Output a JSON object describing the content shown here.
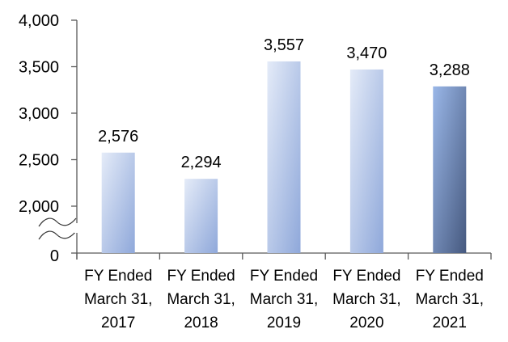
{
  "chart_data": {
    "type": "bar",
    "categories": [
      [
        "FY Ended",
        "March 31,",
        "2017"
      ],
      [
        "FY Ended",
        "March 31,",
        "2018"
      ],
      [
        "FY Ended",
        "March 31,",
        "2019"
      ],
      [
        "FY Ended",
        "March 31,",
        "2020"
      ],
      [
        "FY Ended",
        "March 31,",
        "2021"
      ]
    ],
    "values": [
      2576,
      2294,
      3557,
      3470,
      3288
    ],
    "value_labels": [
      "2,576",
      "2,294",
      "3,557",
      "3,470",
      "3,288"
    ],
    "y_ticks": [
      {
        "value": 4000,
        "label": "4,000"
      },
      {
        "value": 3500,
        "label": "3,500"
      },
      {
        "value": 3000,
        "label": "3,000"
      },
      {
        "value": 2500,
        "label": "2,500"
      },
      {
        "value": 2000,
        "label": "2,000"
      }
    ],
    "y_zero_label": "0",
    "ylim": [
      1500,
      4000
    ],
    "axis_break": true,
    "grid": false,
    "title": "",
    "xlabel": "",
    "ylabel": "",
    "colors": {
      "bar_light": "#dde6f6",
      "bar_mid": "#93acdc",
      "highlight_light": "#93b1e4",
      "highlight_dark": "#4c6189",
      "axis": "#595959"
    },
    "highlight_index": 4
  }
}
